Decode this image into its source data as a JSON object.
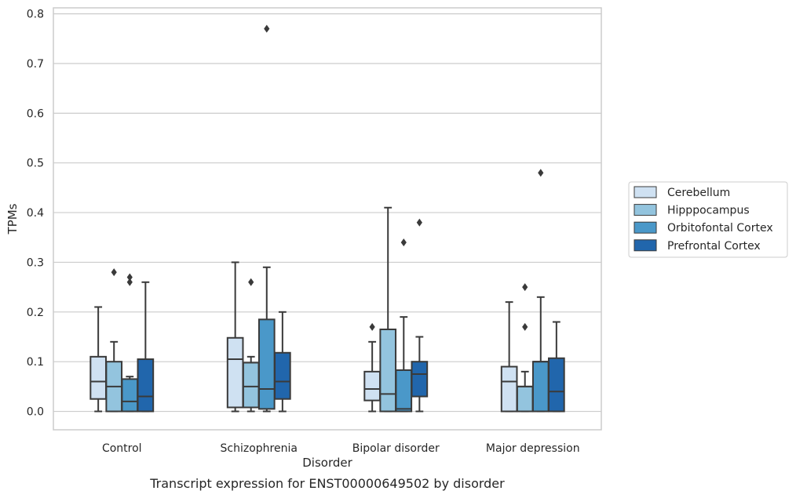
{
  "chart_data": {
    "type": "boxplot",
    "caption": "Transcript expression for ENST00000649502 by disorder",
    "xlabel": "Disorder",
    "ylabel": "TPMs",
    "ylim": [
      -0.037,
      0.812
    ],
    "y_ticks": [
      "0.0",
      "0.1",
      "0.2",
      "0.3",
      "0.4",
      "0.5",
      "0.6",
      "0.7",
      "0.8"
    ],
    "grid": "horizontal",
    "legend_position": "right",
    "categories": [
      "Control",
      "Schizophrenia",
      "Bipolar disorder",
      "Major depression"
    ],
    "series": [
      {
        "name": "Cerebellum",
        "color": "#cfe1f2",
        "boxes": [
          {
            "whisker_low": 0.0,
            "q1": 0.025,
            "median": 0.06,
            "q3": 0.11,
            "whisker_high": 0.21,
            "outliers": []
          },
          {
            "whisker_low": 0.0,
            "q1": 0.008,
            "median": 0.105,
            "q3": 0.148,
            "whisker_high": 0.3,
            "outliers": []
          },
          {
            "whisker_low": 0.0,
            "q1": 0.022,
            "median": 0.045,
            "q3": 0.08,
            "whisker_high": 0.14,
            "outliers": [
              0.17
            ]
          },
          {
            "whisker_low": 0.0,
            "q1": 0.0,
            "median": 0.06,
            "q3": 0.09,
            "whisker_high": 0.22,
            "outliers": []
          }
        ]
      },
      {
        "name": "Hipppocampus",
        "color": "#93c4de",
        "boxes": [
          {
            "whisker_low": 0.0,
            "q1": 0.0,
            "median": 0.05,
            "q3": 0.1,
            "whisker_high": 0.14,
            "outliers": [
              0.28
            ]
          },
          {
            "whisker_low": 0.0,
            "q1": 0.008,
            "median": 0.05,
            "q3": 0.098,
            "whisker_high": 0.11,
            "outliers": [
              0.26
            ]
          },
          {
            "whisker_low": 0.0,
            "q1": 0.0,
            "median": 0.035,
            "q3": 0.165,
            "whisker_high": 0.41,
            "outliers": []
          },
          {
            "whisker_low": 0.0,
            "q1": 0.0,
            "median": 0.05,
            "q3": 0.05,
            "whisker_high": 0.08,
            "outliers": [
              0.17,
              0.25
            ]
          }
        ]
      },
      {
        "name": "Orbitofontal Cortex",
        "color": "#4a98c9",
        "boxes": [
          {
            "whisker_low": 0.0,
            "q1": 0.0,
            "median": 0.02,
            "q3": 0.065,
            "whisker_high": 0.07,
            "outliers": [
              0.26,
              0.27
            ]
          },
          {
            "whisker_low": 0.0,
            "q1": 0.005,
            "median": 0.045,
            "q3": 0.185,
            "whisker_high": 0.29,
            "outliers": [
              0.77
            ]
          },
          {
            "whisker_low": 0.0,
            "q1": 0.0,
            "median": 0.005,
            "q3": 0.083,
            "whisker_high": 0.19,
            "outliers": [
              0.34
            ]
          },
          {
            "whisker_low": 0.0,
            "q1": 0.0,
            "median": 0.1,
            "q3": 0.1,
            "whisker_high": 0.23,
            "outliers": [
              0.48
            ]
          }
        ]
      },
      {
        "name": "Prefrontal Cortex",
        "color": "#2166ac",
        "boxes": [
          {
            "whisker_low": 0.0,
            "q1": 0.0,
            "median": 0.03,
            "q3": 0.105,
            "whisker_high": 0.26,
            "outliers": []
          },
          {
            "whisker_low": 0.0,
            "q1": 0.025,
            "median": 0.06,
            "q3": 0.118,
            "whisker_high": 0.2,
            "outliers": []
          },
          {
            "whisker_low": 0.0,
            "q1": 0.03,
            "median": 0.075,
            "q3": 0.1,
            "whisker_high": 0.15,
            "outliers": [
              0.38
            ]
          },
          {
            "whisker_low": 0.0,
            "q1": 0.0,
            "median": 0.04,
            "q3": 0.107,
            "whisker_high": 0.18,
            "outliers": []
          }
        ]
      }
    ]
  }
}
